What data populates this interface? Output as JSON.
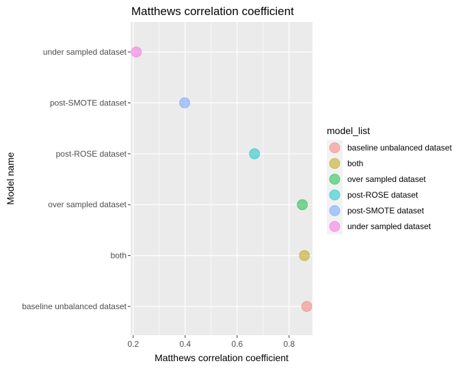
{
  "chart_data": {
    "type": "scatter",
    "title": "Matthews correlation coefficient",
    "xlabel": "Matthews correlation coefficient",
    "ylabel": "Model name",
    "xlim": [
      0.19,
      0.89
    ],
    "x_ticks": [
      0.2,
      0.4,
      0.6,
      0.8
    ],
    "x_tick_labels": [
      "0.2",
      "0.4",
      "0.6",
      "0.8"
    ],
    "categories": [
      "baseline unbalanced dataset",
      "both",
      "over sampled dataset",
      "post-ROSE dataset",
      "post-SMOTE dataset",
      "under sampled dataset"
    ],
    "points": [
      {
        "category": "baseline unbalanced dataset",
        "x": 0.868,
        "color": "#F8766D"
      },
      {
        "category": "both",
        "x": 0.859,
        "color": "#B79F00"
      },
      {
        "category": "over sampled dataset",
        "x": 0.851,
        "color": "#00BA38"
      },
      {
        "category": "post-ROSE dataset",
        "x": 0.667,
        "color": "#00BFC4"
      },
      {
        "category": "post-SMOTE dataset",
        "x": 0.398,
        "color": "#619CFF"
      },
      {
        "category": "under sampled dataset",
        "x": 0.212,
        "color": "#F564E3"
      }
    ],
    "grid": true,
    "legend": {
      "title": "model_list",
      "position": "right",
      "entries": [
        {
          "label": "baseline unbalanced dataset",
          "color": "#F8766D"
        },
        {
          "label": "both",
          "color": "#B79F00"
        },
        {
          "label": "over sampled dataset",
          "color": "#00BA38"
        },
        {
          "label": "post-ROSE dataset",
          "color": "#00BFC4"
        },
        {
          "label": "post-SMOTE dataset",
          "color": "#619CFF"
        },
        {
          "label": "under sampled dataset",
          "color": "#F564E3"
        }
      ]
    }
  }
}
